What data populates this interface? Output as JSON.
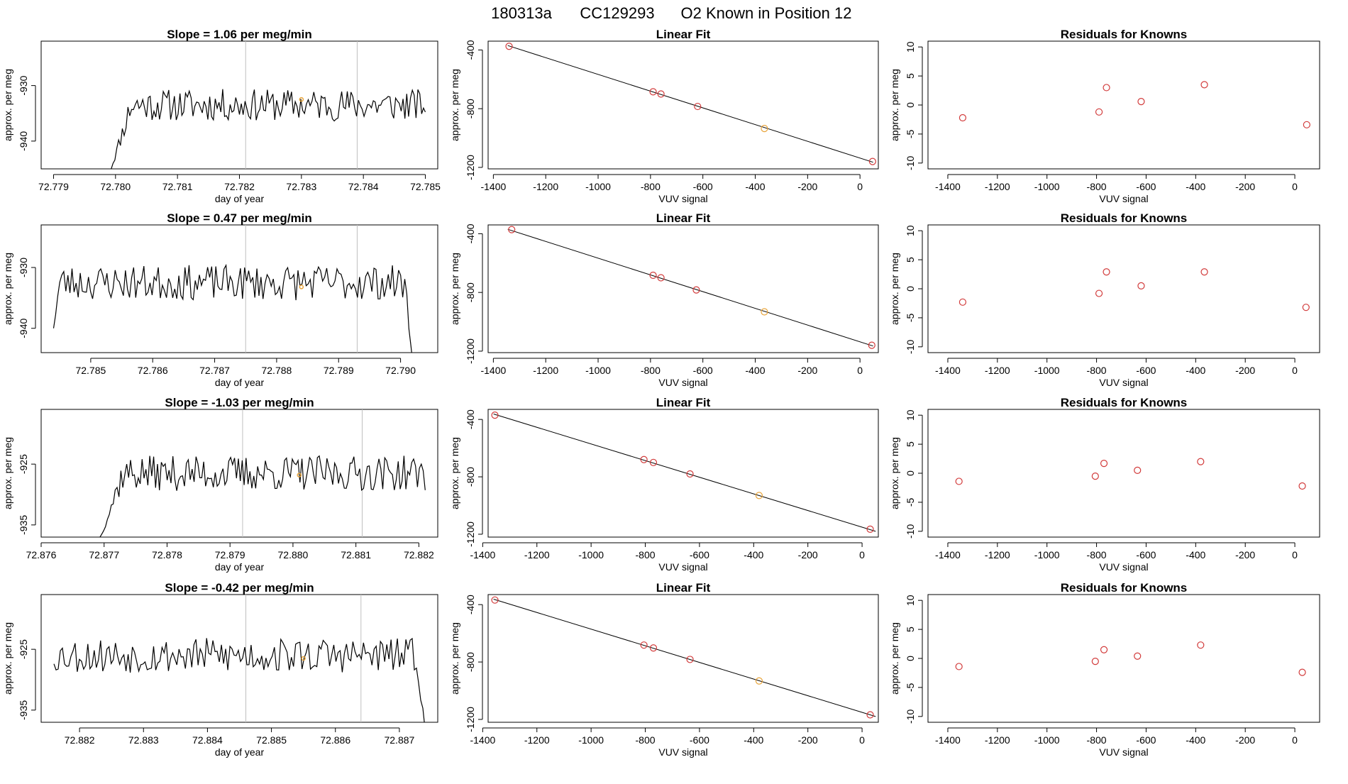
{
  "header": {
    "date": "180313a",
    "cylinder": "CC129293",
    "description": "O2 Known in Position  12"
  },
  "colors": {
    "line": "#000000",
    "point": "#d23b3b",
    "highlight": "#e8a43a",
    "frame": "#000000",
    "vline": "#bfbfbf"
  },
  "chart_data": [
    {
      "type": "line",
      "row": 0,
      "col": 0,
      "title": "Slope =  1.06  per meg/min",
      "xlabel": "day of year",
      "ylabel": "approx. per meg",
      "xlim": [
        72.7788,
        72.7852
      ],
      "ylim": [
        -945,
        -922
      ],
      "xticks": [
        72.779,
        72.78,
        72.781,
        72.782,
        72.783,
        72.784,
        72.785
      ],
      "xtick_labels": [
        "72.779",
        "72.780",
        "72.781",
        "72.782",
        "72.783",
        "72.784",
        "72.785"
      ],
      "yticks": [
        -930,
        -940
      ],
      "ytick_labels": [
        "-930",
        "-940"
      ],
      "vlines": [
        72.7821,
        72.7839
      ],
      "series_start": 72.7799,
      "series_end": 72.785,
      "series_base": -933.5,
      "series_amp": 1.8,
      "series_seed": 11,
      "series_n": 170,
      "rise_from": -946,
      "rise_len": 0.00035,
      "tail_to": null,
      "highlight": {
        "x": 72.783,
        "y": -932.5
      }
    },
    {
      "type": "scatter_fit",
      "row": 0,
      "col": 1,
      "title": "Linear Fit",
      "xlabel": "VUV signal",
      "ylabel": "approx. per meg",
      "xlim": [
        -1420,
        70
      ],
      "ylim": [
        -1210,
        -340
      ],
      "xticks": [
        -1400,
        -1200,
        -1000,
        -800,
        -600,
        -400,
        -200,
        0
      ],
      "xtick_labels": [
        "-1400",
        "-1200",
        "-1000",
        "-800",
        "-600",
        "-400",
        "-200",
        "0"
      ],
      "yticks": [
        -400,
        -800,
        -1200
      ],
      "ytick_labels": [
        "-400",
        "-800",
        "-1200"
      ],
      "fit_x": [
        -1345,
        50
      ],
      "fit_y": [
        -370,
        -1165
      ],
      "points_x": [
        -1340,
        -790,
        -760,
        -620,
        -365,
        48
      ],
      "points_y": [
        -375,
        -685,
        -700,
        -785,
        -935,
        -1160
      ],
      "highlight_index": 4
    },
    {
      "type": "scatter",
      "row": 0,
      "col": 2,
      "title": "Residuals for Knowns",
      "xlabel": "VUV signal",
      "ylabel": "approx. per meg",
      "xlim": [
        -1480,
        100
      ],
      "ylim": [
        -11,
        11
      ],
      "xticks": [
        -1400,
        -1200,
        -1000,
        -800,
        -600,
        -400,
        -200,
        0
      ],
      "xtick_labels": [
        "-1400",
        "-1200",
        "-1000",
        "-800",
        "-600",
        "-400",
        "-200",
        "0"
      ],
      "yticks": [
        10,
        5,
        0,
        -5,
        -10
      ],
      "ytick_labels": [
        "10",
        "5",
        "0",
        "-5",
        "-10"
      ],
      "points_x": [
        -1340,
        -790,
        -760,
        -620,
        -365,
        48
      ],
      "points_y": [
        -2.2,
        -1.2,
        3.0,
        0.6,
        3.5,
        -3.4
      ]
    },
    {
      "type": "line",
      "row": 1,
      "col": 0,
      "title": "Slope =  0.47  per meg/min",
      "xlabel": "day of year",
      "ylabel": "approx. per meg",
      "xlim": [
        72.7842,
        72.7906
      ],
      "ylim": [
        -944,
        -923
      ],
      "xticks": [
        72.785,
        72.786,
        72.787,
        72.788,
        72.789,
        72.79
      ],
      "xtick_labels": [
        "72.785",
        "72.786",
        "72.787",
        "72.788",
        "72.789",
        "72.790"
      ],
      "yticks": [
        -930,
        -940
      ],
      "ytick_labels": [
        "-930",
        "-940"
      ],
      "vlines": [
        72.7875,
        72.7893
      ],
      "series_start": 72.7844,
      "series_end": 72.7902,
      "series_base": -932.5,
      "series_amp": 1.8,
      "series_seed": 23,
      "series_n": 175,
      "rise_from": -940,
      "rise_len": 0.0001,
      "tail_to": -946,
      "highlight": {
        "x": 72.7884,
        "y": -933.2
      }
    },
    {
      "type": "scatter_fit",
      "row": 1,
      "col": 1,
      "title": "Linear Fit",
      "xlabel": "VUV signal",
      "ylabel": "approx. per meg",
      "xlim": [
        -1420,
        70
      ],
      "ylim": [
        -1210,
        -340
      ],
      "xticks": [
        -1400,
        -1200,
        -1000,
        -800,
        -600,
        -400,
        -200,
        0
      ],
      "xtick_labels": [
        "-1400",
        "-1200",
        "-1000",
        "-800",
        "-600",
        "-400",
        "-200",
        "0"
      ],
      "yticks": [
        -400,
        -800,
        -1200
      ],
      "ytick_labels": [
        "-400",
        "-800",
        "-1200"
      ],
      "fit_x": [
        -1345,
        50
      ],
      "fit_y": [
        -370,
        -1165
      ],
      "points_x": [
        -1330,
        -790,
        -760,
        -625,
        -365,
        45
      ],
      "points_y": [
        -372,
        -683,
        -700,
        -783,
        -932,
        -1160
      ],
      "highlight_index": 4
    },
    {
      "type": "scatter",
      "row": 1,
      "col": 2,
      "title": "Residuals for Knowns",
      "xlabel": "VUV signal",
      "ylabel": "approx. per meg",
      "xlim": [
        -1480,
        100
      ],
      "ylim": [
        -11,
        11
      ],
      "xticks": [
        -1400,
        -1200,
        -1000,
        -800,
        -600,
        -400,
        -200,
        0
      ],
      "xtick_labels": [
        "-1400",
        "-1200",
        "-1000",
        "-800",
        "-600",
        "-400",
        "-200",
        "0"
      ],
      "yticks": [
        10,
        5,
        0,
        -5,
        -10
      ],
      "ytick_labels": [
        "10",
        "5",
        "0",
        "-5",
        "-10"
      ],
      "points_x": [
        -1340,
        -790,
        -760,
        -620,
        -365,
        45
      ],
      "points_y": [
        -2.3,
        -0.8,
        2.9,
        0.5,
        2.9,
        -3.2
      ]
    },
    {
      "type": "line",
      "row": 2,
      "col": 0,
      "title": "Slope =  -1.03  per meg/min",
      "xlabel": "day of year",
      "ylabel": "approx. per meg",
      "xlim": [
        72.876,
        72.8823
      ],
      "ylim": [
        -937,
        -916
      ],
      "xticks": [
        72.876,
        72.877,
        72.878,
        72.879,
        72.88,
        72.881,
        72.882
      ],
      "xtick_labels": [
        "72.876",
        "72.877",
        "72.878",
        "72.879",
        "72.880",
        "72.881",
        "72.882"
      ],
      "yticks": [
        -925,
        -935
      ],
      "ytick_labels": [
        "-925",
        "-935"
      ],
      "vlines": [
        72.8792,
        72.8811
      ],
      "series_start": 72.8769,
      "series_end": 72.8821,
      "series_base": -926.5,
      "series_amp": 1.8,
      "series_seed": 37,
      "series_n": 170,
      "rise_from": -938,
      "rise_len": 0.0004,
      "tail_to": null,
      "highlight": {
        "x": 72.8801,
        "y": -926.8
      }
    },
    {
      "type": "scatter_fit",
      "row": 2,
      "col": 1,
      "title": "Linear Fit",
      "xlabel": "VUV signal",
      "ylabel": "approx. per meg",
      "xlim": [
        -1380,
        60
      ],
      "ylim": [
        -1220,
        -330
      ],
      "xticks": [
        -1400,
        -1200,
        -1000,
        -800,
        -600,
        -400,
        -200,
        0
      ],
      "xtick_labels": [
        "-1400",
        "-1200",
        "-1000",
        "-800",
        "-600",
        "-400",
        "-200",
        "0"
      ],
      "yticks": [
        -400,
        -800,
        -1200
      ],
      "ytick_labels": [
        "-400",
        "-800",
        "-1200"
      ],
      "fit_x": [
        -1360,
        50
      ],
      "fit_y": [
        -362,
        -1180
      ],
      "points_x": [
        -1355,
        -805,
        -770,
        -635,
        -380,
        30
      ],
      "points_y": [
        -370,
        -680,
        -700,
        -780,
        -930,
        -1165
      ],
      "highlight_index": 4
    },
    {
      "type": "scatter",
      "row": 2,
      "col": 2,
      "title": "Residuals for Knowns",
      "xlabel": "VUV signal",
      "ylabel": "approx. per meg",
      "xlim": [
        -1480,
        100
      ],
      "ylim": [
        -11,
        11
      ],
      "xticks": [
        -1400,
        -1200,
        -1000,
        -800,
        -600,
        -400,
        -200,
        0
      ],
      "xtick_labels": [
        "-1400",
        "-1200",
        "-1000",
        "-800",
        "-600",
        "-400",
        "-200",
        "0"
      ],
      "yticks": [
        10,
        5,
        0,
        -5,
        -10
      ],
      "ytick_labels": [
        "10",
        "5",
        "0",
        "-5",
        "-10"
      ],
      "points_x": [
        -1355,
        -805,
        -770,
        -635,
        -380,
        30
      ],
      "points_y": [
        -1.4,
        -0.5,
        1.7,
        0.5,
        2.0,
        -2.2
      ]
    },
    {
      "type": "line",
      "row": 3,
      "col": 0,
      "title": "Slope =  -0.42  per meg/min",
      "xlabel": "day of year",
      "ylabel": "approx. per meg",
      "xlim": [
        72.8814,
        72.8876
      ],
      "ylim": [
        -937,
        -916
      ],
      "xticks": [
        72.882,
        72.883,
        72.884,
        72.885,
        72.886,
        72.887
      ],
      "xtick_labels": [
        "72.882",
        "72.883",
        "72.884",
        "72.885",
        "72.886",
        "72.887"
      ],
      "yticks": [
        -925,
        -935
      ],
      "ytick_labels": [
        "-925",
        "-935"
      ],
      "vlines": [
        72.8846,
        72.8864
      ],
      "series_start": 72.8816,
      "series_end": 72.8874,
      "series_base": -926,
      "series_amp": 1.8,
      "series_seed": 53,
      "series_n": 175,
      "rise_from": null,
      "rise_len": 0,
      "tail_to": -938,
      "highlight": {
        "x": 72.8855,
        "y": -926.5
      }
    },
    {
      "type": "scatter_fit",
      "row": 3,
      "col": 1,
      "title": "Linear Fit",
      "xlabel": "VUV signal",
      "ylabel": "approx. per meg",
      "xlim": [
        -1380,
        60
      ],
      "ylim": [
        -1220,
        -330
      ],
      "xticks": [
        -1400,
        -1200,
        -1000,
        -800,
        -600,
        -400,
        -200,
        0
      ],
      "xtick_labels": [
        "-1400",
        "-1200",
        "-1000",
        "-800",
        "-600",
        "-400",
        "-200",
        "0"
      ],
      "yticks": [
        -400,
        -800,
        -1200
      ],
      "ytick_labels": [
        "-400",
        "-800",
        "-1200"
      ],
      "fit_x": [
        -1360,
        50
      ],
      "fit_y": [
        -362,
        -1180
      ],
      "points_x": [
        -1355,
        -805,
        -770,
        -635,
        -380,
        30
      ],
      "points_y": [
        -368,
        -682,
        -702,
        -782,
        -932,
        -1168
      ],
      "highlight_index": 4
    },
    {
      "type": "scatter",
      "row": 3,
      "col": 2,
      "title": "Residuals for Knowns",
      "xlabel": "VUV signal",
      "ylabel": "approx. per meg",
      "xlim": [
        -1480,
        100
      ],
      "ylim": [
        -11,
        11
      ],
      "xticks": [
        -1400,
        -1200,
        -1000,
        -800,
        -600,
        -400,
        -200,
        0
      ],
      "xtick_labels": [
        "-1400",
        "-1200",
        "-1000",
        "-800",
        "-600",
        "-400",
        "-200",
        "0"
      ],
      "yticks": [
        10,
        5,
        0,
        -5,
        -10
      ],
      "ytick_labels": [
        "10",
        "5",
        "0",
        "-5",
        "-10"
      ],
      "points_x": [
        -1355,
        -805,
        -770,
        -635,
        -380,
        30
      ],
      "points_y": [
        -1.4,
        -0.5,
        1.5,
        0.4,
        2.3,
        -2.4
      ]
    }
  ]
}
